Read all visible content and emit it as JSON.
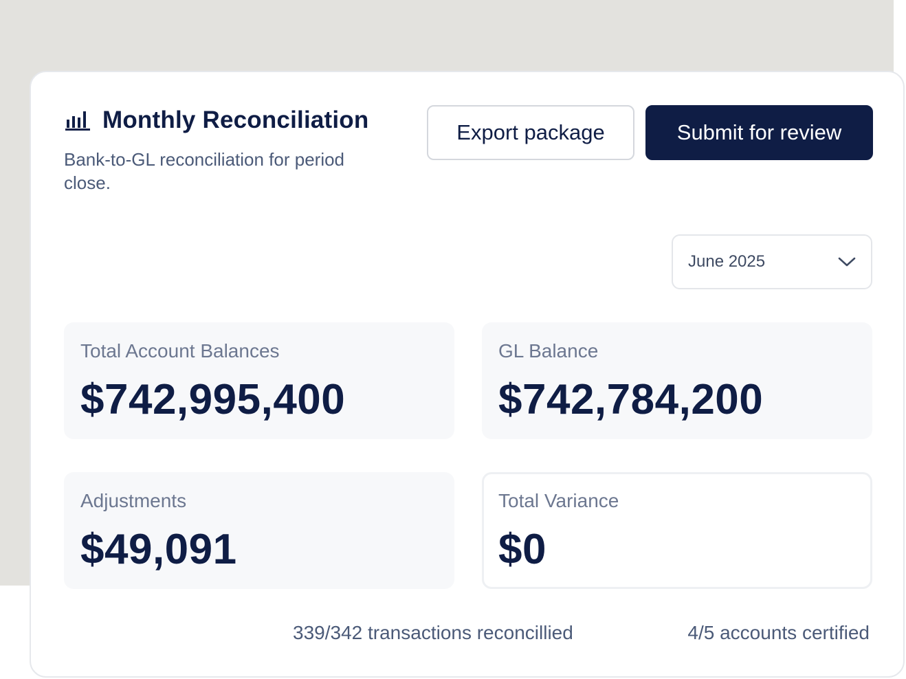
{
  "header": {
    "title": "Monthly Reconciliation",
    "subtitle": "Bank-to-GL reconciliation for period close.",
    "icon": "bar-chart-icon"
  },
  "actions": {
    "export_label": "Export package",
    "submit_label": "Submit for review"
  },
  "period": {
    "selected": "June 2025"
  },
  "metrics": [
    {
      "label": "Total Account Balances",
      "value": "$742,995,400"
    },
    {
      "label": "GL Balance",
      "value": "$742,784,200"
    },
    {
      "label": "Adjustments",
      "value": "$49,091"
    },
    {
      "label": "Total Variance",
      "value": "$0"
    }
  ],
  "footer": {
    "transactions": "339/342 transactions reconcillied",
    "accounts": "4/5 accounts certified"
  },
  "colors": {
    "primary": "#0f1d45",
    "backdrop": "#e3e2de",
    "muted_text": "#6c7790"
  }
}
